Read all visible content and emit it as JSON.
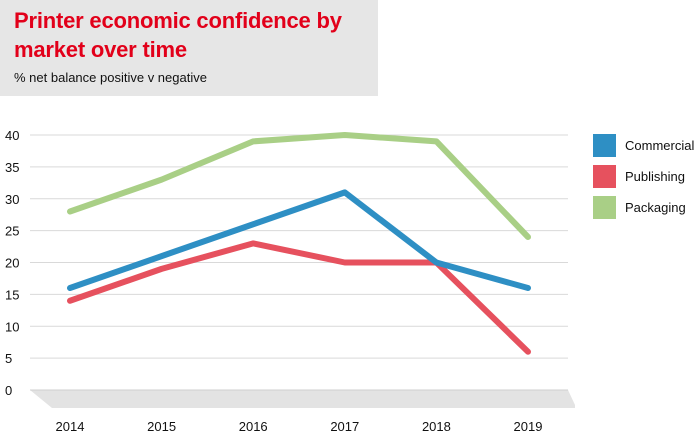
{
  "title": "Printer economic confidence by market over time",
  "subtitle": "% net balance positive v negative",
  "chart_data": {
    "type": "line",
    "title": "Printer economic confidence by market over time",
    "subtitle": "% net balance positive v negative",
    "xlabel": "",
    "ylabel": "",
    "categories": [
      "2014",
      "2015",
      "2016",
      "2017",
      "2018",
      "2019"
    ],
    "ylim": [
      0,
      40
    ],
    "yticks": [
      0,
      5,
      10,
      15,
      20,
      25,
      30,
      35,
      40
    ],
    "grid": true,
    "legend": "right",
    "series": [
      {
        "name": "Commercial",
        "color": "#2e8fc4",
        "values": [
          16,
          21,
          26,
          31,
          20,
          16
        ]
      },
      {
        "name": "Publishing",
        "color": "#e6515e",
        "values": [
          14,
          19,
          23,
          20,
          20,
          6
        ]
      },
      {
        "name": "Packaging",
        "color": "#a9cf86",
        "values": [
          28,
          33,
          39,
          40,
          39,
          24
        ]
      }
    ]
  }
}
